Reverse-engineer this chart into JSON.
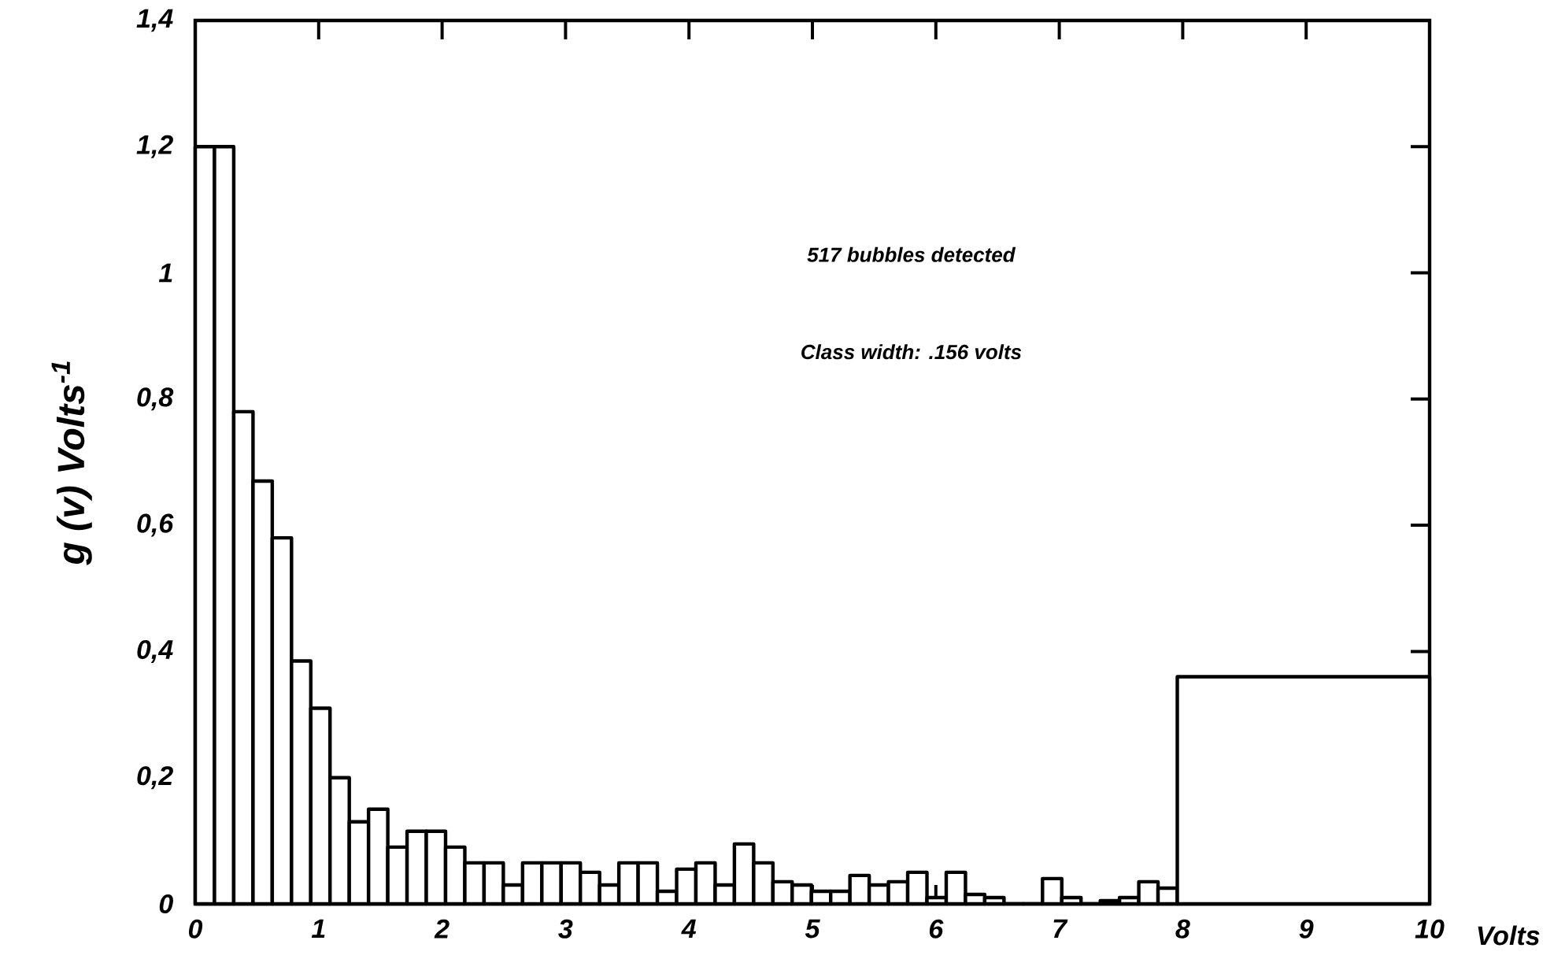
{
  "chart_data": {
    "type": "histogram",
    "xlabel": "Volts",
    "ylabel": "g (v) Volts$^{-1}$",
    "annotations": [
      "517 bubbles detected",
      "Class width: .156 volts"
    ],
    "bins": [
      0,
      0.156,
      0.312,
      0.468,
      0.624,
      0.78,
      0.936,
      1.092,
      1.248,
      1.404,
      1.56,
      1.716,
      1.872,
      2.028,
      2.184,
      2.34,
      2.496,
      2.652,
      2.808,
      2.964,
      3.12,
      3.276,
      3.432,
      3.588,
      3.744,
      3.9,
      4.056,
      4.212,
      4.368,
      4.524,
      4.68,
      4.836,
      4.992,
      5.148,
      5.304,
      5.46,
      5.616,
      5.772,
      5.928,
      6.084,
      6.24,
      6.396,
      6.552,
      6.708,
      6.864,
      7.02,
      7.176,
      7.332,
      7.488,
      7.644,
      7.8,
      7.956,
      10
    ],
    "values": [
      1.2,
      1.2,
      0.78,
      0.67,
      0.58,
      0.385,
      0.31,
      0.2,
      0.13,
      0.15,
      0.09,
      0.115,
      0.115,
      0.09,
      0.065,
      0.065,
      0.03,
      0.065,
      0.065,
      0.065,
      0.05,
      0.03,
      0.065,
      0.065,
      0.02,
      0.055,
      0.065,
      0.03,
      0.095,
      0.065,
      0.035,
      0.03,
      0.02,
      0.02,
      0.045,
      0.03,
      0.035,
      0.05,
      0.01,
      0.05,
      0.015,
      0.01,
      0,
      0,
      0.04,
      0.01,
      0,
      0.005,
      0.01,
      0.035,
      0.025,
      0.36
    ],
    "color": "#000000",
    "xlim": [
      0,
      10
    ],
    "ylim": [
      0,
      1.4
    ],
    "xticks": [
      0,
      1,
      2,
      3,
      4,
      5,
      6,
      7,
      8,
      9,
      10
    ],
    "yticks": [
      0,
      {
        "value": 0.2,
        "label": "0,2"
      },
      {
        "value": 0.4,
        "label": "0,4"
      },
      {
        "value": 0.6,
        "label": "0,6"
      },
      {
        "value": 0.8,
        "label": "0,8"
      },
      1,
      {
        "value": 1.2,
        "label": "1,2"
      },
      {
        "value": 1.4,
        "label": "1,4"
      }
    ]
  }
}
